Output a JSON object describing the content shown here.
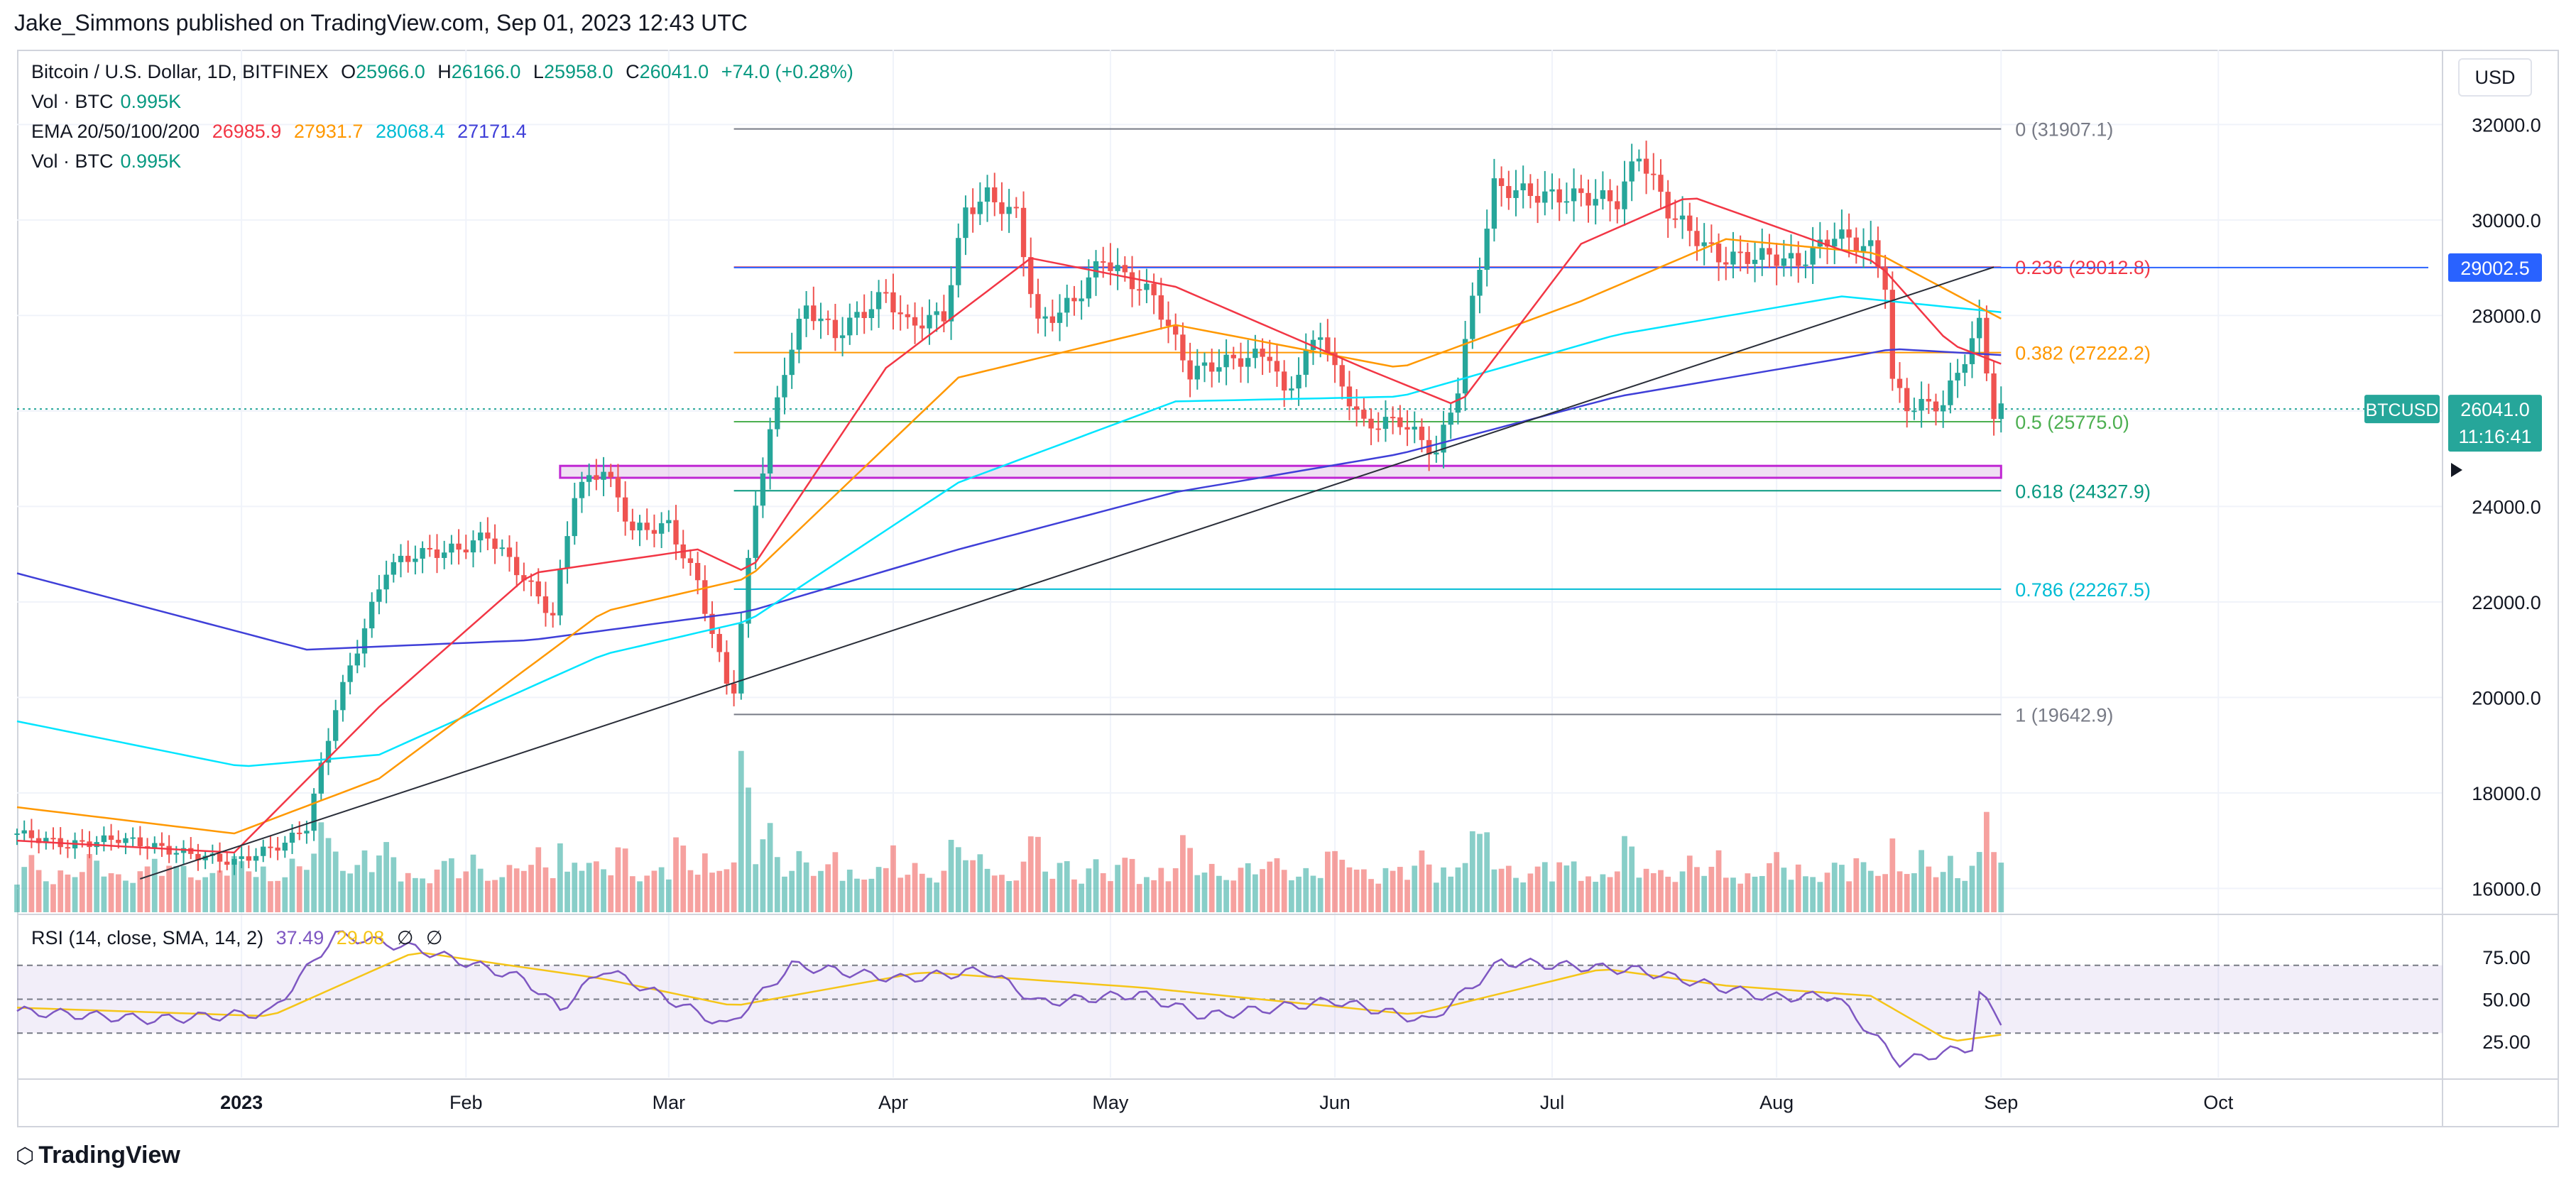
{
  "header": {
    "publisher": "Jake_Simmons published on TradingView.com, Sep 01, 2023 12:43 UTC"
  },
  "legend": {
    "symbol": "Bitcoin / U.S. Dollar, 1D, BITFINEX",
    "o_label": "O",
    "o_value": "25966.0",
    "h_label": "H",
    "h_value": "26166.0",
    "l_label": "L",
    "l_value": "25958.0",
    "c_label": "C",
    "c_value": "26041.0",
    "change": "+74.0 (+0.28%)",
    "vol1_label": "Vol · BTC",
    "vol1_value": "0.995K",
    "ema_label": "EMA 20/50/100/200",
    "ema20": "26985.9",
    "ema50": "27931.7",
    "ema100": "28068.4",
    "ema200": "27171.4",
    "vol2_label": "Vol · BTC",
    "vol2_value": "0.995K"
  },
  "currency_button": "USD",
  "price_axis": {
    "ticks": [
      "32000.0",
      "30000.0",
      "28000.0",
      "26000.0",
      "24000.0",
      "22000.0",
      "20000.0",
      "18000.0",
      "16000.0"
    ],
    "badge_price": "29002.5",
    "badge_symbol": "BTCUSD",
    "badge_last": "26041.0",
    "badge_countdown": "11:16:41"
  },
  "fib_levels": [
    {
      "label": "0 (31907.1)",
      "value": 31907.1,
      "color": "#787b86"
    },
    {
      "label": "0.236 (29012.8)",
      "value": 29012.8,
      "color": "#f23645"
    },
    {
      "label": "0.382 (27222.2)",
      "value": 27222.2,
      "color": "#ff9800"
    },
    {
      "label": "0.5 (25775.0)",
      "value": 25775.0,
      "color": "#4caf50"
    },
    {
      "label": "0.618 (24327.9)",
      "value": 24327.9,
      "color": "#089981"
    },
    {
      "label": "0.786 (22267.5)",
      "value": 22267.5,
      "color": "#00bcd4"
    },
    {
      "label": "1 (19642.9)",
      "value": 19642.9,
      "color": "#787b86"
    }
  ],
  "rsi": {
    "label": "RSI (14, close, SMA, 14, 2)",
    "value1": "37.49",
    "value2": "29.08",
    "na1": "∅",
    "na2": "∅",
    "ticks": [
      "75.00",
      "50.00",
      "25.00"
    ]
  },
  "time_axis": {
    "labels": [
      "2023",
      "Feb",
      "Mar",
      "Apr",
      "May",
      "Jun",
      "Jul",
      "Aug",
      "Sep",
      "Oct"
    ]
  },
  "footer": {
    "brand": "TradingView",
    "logo_icon": "tradingview-logo-icon"
  },
  "colors": {
    "up": "#26a69a",
    "down": "#ef5350",
    "ema20": "#f23645",
    "ema50": "#ff9800",
    "ema100": "#00e5ff",
    "ema200": "#3f3fd8"
  },
  "chart_data": {
    "type": "candlestick",
    "title": "Bitcoin / U.S. Dollar, 1D, BITFINEX",
    "ylim": [
      15500,
      32600
    ],
    "x_start": "2022-12-01",
    "x_end": "2023-10-20",
    "close_anchors": [
      [
        "2022-12-01",
        17150
      ],
      [
        "2022-12-08",
        16900
      ],
      [
        "2022-12-15",
        17050
      ],
      [
        "2022-12-22",
        16800
      ],
      [
        "2022-12-31",
        16550
      ],
      [
        "2023-01-07",
        16950
      ],
      [
        "2023-01-10",
        17300
      ],
      [
        "2023-01-14",
        19800
      ],
      [
        "2023-01-21",
        22700
      ],
      [
        "2023-01-25",
        23000
      ],
      [
        "2023-01-31",
        23100
      ],
      [
        "2023-02-04",
        23400
      ],
      [
        "2023-02-09",
        22500
      ],
      [
        "2023-02-13",
        21700
      ],
      [
        "2023-02-16",
        24300
      ],
      [
        "2023-02-20",
        24800
      ],
      [
        "2023-02-24",
        23500
      ],
      [
        "2023-03-01",
        23600
      ],
      [
        "2023-03-05",
        22400
      ],
      [
        "2023-03-09",
        20300
      ],
      [
        "2023-03-10",
        20200
      ],
      [
        "2023-03-13",
        24100
      ],
      [
        "2023-03-17",
        26900
      ],
      [
        "2023-03-20",
        28200
      ],
      [
        "2023-03-24",
        27600
      ],
      [
        "2023-03-31",
        28450
      ],
      [
        "2023-04-03",
        27800
      ],
      [
        "2023-04-08",
        28000
      ],
      [
        "2023-04-11",
        30200
      ],
      [
        "2023-04-14",
        30500
      ],
      [
        "2023-04-18",
        30100
      ],
      [
        "2023-04-21",
        27800
      ],
      [
        "2023-04-26",
        28300
      ],
      [
        "2023-04-30",
        29200
      ],
      [
        "2023-05-03",
        28800
      ],
      [
        "2023-05-07",
        28400
      ],
      [
        "2023-05-12",
        26800
      ],
      [
        "2023-05-16",
        27000
      ],
      [
        "2023-05-23",
        27200
      ],
      [
        "2023-05-25",
        26300
      ],
      [
        "2023-05-30",
        27700
      ],
      [
        "2023-06-01",
        26800
      ],
      [
        "2023-06-05",
        25700
      ],
      [
        "2023-06-10",
        25800
      ],
      [
        "2023-06-15",
        25100
      ],
      [
        "2023-06-18",
        26500
      ],
      [
        "2023-06-20",
        28300
      ],
      [
        "2023-06-23",
        30700
      ],
      [
        "2023-06-30",
        30500
      ],
      [
        "2023-07-05",
        30500
      ],
      [
        "2023-07-10",
        30400
      ],
      [
        "2023-07-13",
        31400
      ],
      [
        "2023-07-17",
        30200
      ],
      [
        "2023-07-24",
        29200
      ],
      [
        "2023-07-31",
        29250
      ],
      [
        "2023-08-04",
        29100
      ],
      [
        "2023-08-09",
        29700
      ],
      [
        "2023-08-14",
        29400
      ],
      [
        "2023-08-16",
        28700
      ],
      [
        "2023-08-17",
        26600
      ],
      [
        "2023-08-19",
        26100
      ],
      [
        "2023-08-24",
        26150
      ],
      [
        "2023-08-29",
        27800
      ],
      [
        "2023-08-31",
        25950
      ],
      [
        "2023-09-01",
        26041
      ]
    ],
    "ema_anchors": {
      "ema20": [
        [
          "2022-12-01",
          17000
        ],
        [
          "2022-12-31",
          16750
        ],
        [
          "2023-01-20",
          19800
        ],
        [
          "2023-02-10",
          22600
        ],
        [
          "2023-03-05",
          23100
        ],
        [
          "2023-03-12",
          22600
        ],
        [
          "2023-03-31",
          26900
        ],
        [
          "2023-04-20",
          29200
        ],
        [
          "2023-05-10",
          28600
        ],
        [
          "2023-06-05",
          26900
        ],
        [
          "2023-06-18",
          26100
        ],
        [
          "2023-07-05",
          29500
        ],
        [
          "2023-07-20",
          30500
        ],
        [
          "2023-08-15",
          29100
        ],
        [
          "2023-08-25",
          27400
        ],
        [
          "2023-09-01",
          26986
        ]
      ],
      "ema50": [
        [
          "2022-12-01",
          17700
        ],
        [
          "2022-12-31",
          17150
        ],
        [
          "2023-01-20",
          18300
        ],
        [
          "2023-02-20",
          21800
        ],
        [
          "2023-03-12",
          22500
        ],
        [
          "2023-04-10",
          26700
        ],
        [
          "2023-05-10",
          27800
        ],
        [
          "2023-06-10",
          26900
        ],
        [
          "2023-07-05",
          28300
        ],
        [
          "2023-07-25",
          29600
        ],
        [
          "2023-08-15",
          29300
        ],
        [
          "2023-09-01",
          27932
        ]
      ],
      "ema100": [
        [
          "2022-12-01",
          19500
        ],
        [
          "2023-01-01",
          18550
        ],
        [
          "2023-01-20",
          18800
        ],
        [
          "2023-02-20",
          20900
        ],
        [
          "2023-03-12",
          21600
        ],
        [
          "2023-04-10",
          24500
        ],
        [
          "2023-05-10",
          26200
        ],
        [
          "2023-06-10",
          26300
        ],
        [
          "2023-07-10",
          27600
        ],
        [
          "2023-08-10",
          28400
        ],
        [
          "2023-09-01",
          28068
        ]
      ],
      "ema200": [
        [
          "2022-12-01",
          22600
        ],
        [
          "2023-01-10",
          21000
        ],
        [
          "2023-02-10",
          21200
        ],
        [
          "2023-03-12",
          21800
        ],
        [
          "2023-04-10",
          23100
        ],
        [
          "2023-05-10",
          24300
        ],
        [
          "2023-06-10",
          25100
        ],
        [
          "2023-07-10",
          26300
        ],
        [
          "2023-08-10",
          27100
        ],
        [
          "2023-08-17",
          27300
        ],
        [
          "2023-09-01",
          27171
        ]
      ]
    },
    "rsi_anchors": [
      [
        "2022-12-01",
        43
      ],
      [
        "2022-12-20",
        38
      ],
      [
        "2023-01-05",
        42
      ],
      [
        "2023-01-14",
        88
      ],
      [
        "2023-01-25",
        80
      ],
      [
        "2023-02-09",
        62
      ],
      [
        "2023-02-14",
        44
      ],
      [
        "2023-02-20",
        68
      ],
      [
        "2023-03-09",
        34
      ],
      [
        "2023-03-18",
        70
      ],
      [
        "2023-04-02",
        62
      ],
      [
        "2023-04-14",
        67
      ],
      [
        "2023-04-21",
        48
      ],
      [
        "2023-05-05",
        53
      ],
      [
        "2023-05-14",
        40
      ],
      [
        "2023-06-01",
        49
      ],
      [
        "2023-06-14",
        37
      ],
      [
        "2023-06-24",
        72
      ],
      [
        "2023-07-13",
        67
      ],
      [
        "2023-07-31",
        51
      ],
      [
        "2023-08-09",
        52
      ],
      [
        "2023-08-18",
        13
      ],
      [
        "2023-08-28",
        22
      ],
      [
        "2023-08-29",
        53
      ],
      [
        "2023-09-01",
        37.49
      ]
    ],
    "rsi_sma_anchors": [
      [
        "2022-12-01",
        45
      ],
      [
        "2023-01-05",
        40
      ],
      [
        "2023-01-25",
        78
      ],
      [
        "2023-02-20",
        62
      ],
      [
        "2023-03-10",
        46
      ],
      [
        "2023-04-05",
        66
      ],
      [
        "2023-05-05",
        57
      ],
      [
        "2023-06-12",
        41
      ],
      [
        "2023-07-08",
        68
      ],
      [
        "2023-07-25",
        58
      ],
      [
        "2023-08-14",
        52
      ],
      [
        "2023-08-25",
        25
      ],
      [
        "2023-09-01",
        29.08
      ]
    ],
    "trendline": [
      [
        "2022-12-18",
        16200
      ],
      [
        "2023-08-31",
        29012.8
      ]
    ],
    "support_zone": [
      24600,
      24850
    ],
    "fib_start": "2023-03-10",
    "fib_end": "2023-09-01"
  }
}
